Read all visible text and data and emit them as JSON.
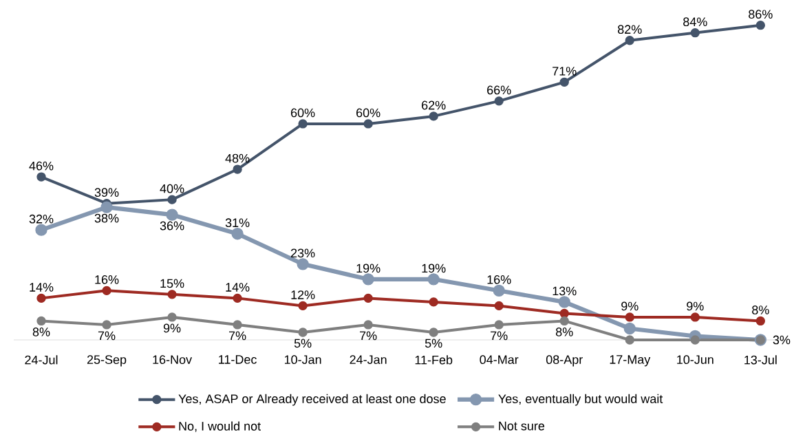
{
  "chart_data": {
    "type": "line",
    "categories": [
      "24-Jul",
      "25-Sep",
      "16-Nov",
      "11-Dec",
      "10-Jan",
      "24-Jan",
      "11-Feb",
      "04-Mar",
      "08-Apr",
      "17-May",
      "10-Jun",
      "13-Jul"
    ],
    "series": [
      {
        "name": "Yes, ASAP or Already received at least one dose",
        "color": "#44546a",
        "values": [
          46,
          39,
          40,
          48,
          60,
          60,
          62,
          66,
          71,
          82,
          84,
          86
        ],
        "value_labels": [
          "46%",
          "39%",
          "40%",
          "48%",
          "60%",
          "60%",
          "62%",
          "66%",
          "71%",
          "82%",
          "84%",
          "86%"
        ]
      },
      {
        "name": "Yes, eventually but would wait",
        "color": "#8497b0",
        "values": [
          32,
          38,
          36,
          31,
          23,
          19,
          19,
          16,
          13,
          6,
          4,
          3
        ],
        "value_labels": [
          "32%",
          "38%",
          "36%",
          "31%",
          "23%",
          "19%",
          "19%",
          "16%",
          "13%",
          null,
          null,
          null
        ]
      },
      {
        "name": "No, I would not",
        "color": "#9e2a22",
        "values": [
          14,
          16,
          15,
          14,
          12,
          14,
          13,
          12,
          10,
          9,
          9,
          8
        ],
        "value_labels": [
          "14%",
          "16%",
          "15%",
          "14%",
          "12%",
          null,
          null,
          null,
          null,
          "9%",
          "9%",
          "8%"
        ]
      },
      {
        "name": "Not sure",
        "color": "#7f7f7f",
        "values": [
          8,
          7,
          9,
          7,
          5,
          7,
          5,
          7,
          8,
          3,
          3,
          3
        ],
        "value_labels": [
          "8%",
          "7%",
          "9%",
          "7%",
          "5%",
          "7%",
          "5%",
          "7%",
          "8%",
          null,
          null,
          "3%"
        ]
      }
    ],
    "marker": "circle",
    "legend": "bottom",
    "grid": false
  }
}
